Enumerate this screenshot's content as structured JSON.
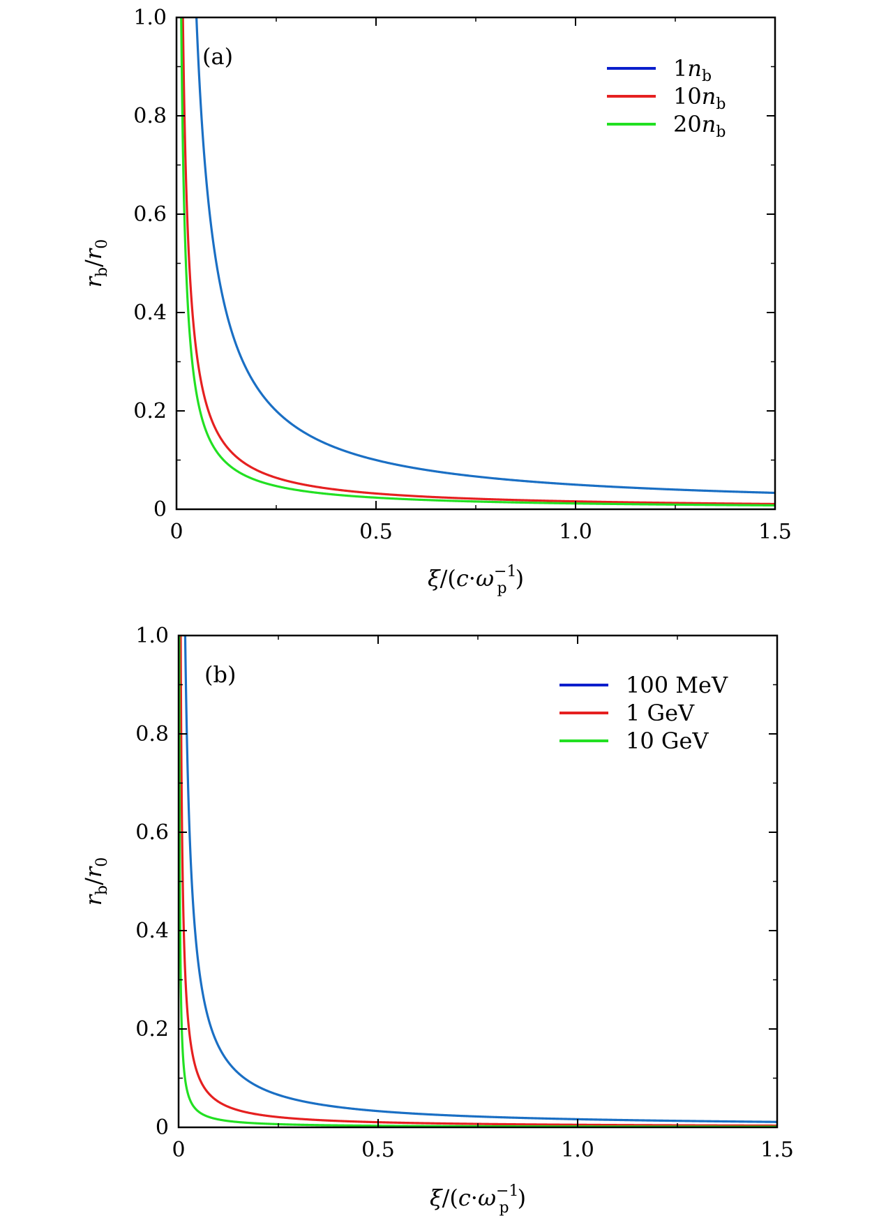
{
  "chart_data": [
    {
      "type": "line",
      "panel_label": "(a)",
      "xlabel": "ξ/(c·ω_p^−1)",
      "ylabel": "r_b/r_0",
      "xlim": [
        0,
        1.5
      ],
      "ylim": [
        0,
        1.0
      ],
      "xticks": [
        "0",
        "0.5",
        "1.0",
        "1.5"
      ],
      "yticks": [
        "0",
        "0.2",
        "0.4",
        "0.6",
        "0.8",
        "1.0"
      ],
      "grid": false,
      "legend_position": "top-right",
      "series": [
        {
          "name": "1n_b",
          "legend_main": "1",
          "legend_italic": "n",
          "legend_sub": "b",
          "color": "#1a6fc4",
          "legend_color": "#0a1ecc",
          "k": 0.05
        },
        {
          "name": "10n_b",
          "legend_main": "10",
          "legend_italic": "n",
          "legend_sub": "b",
          "color": "#e52020",
          "legend_color": "#e52020",
          "k": 0.016
        },
        {
          "name": "20n_b",
          "legend_main": "20",
          "legend_italic": "n",
          "legend_sub": "b",
          "color": "#22e022",
          "legend_color": "#22e022",
          "k": 0.0118
        }
      ],
      "sample_points": {
        "x": [
          0.03,
          0.05,
          0.1,
          0.2,
          0.3,
          0.5,
          1.0,
          1.5
        ],
        "1n_b": [
          1.0,
          1.0,
          0.5,
          0.25,
          0.167,
          0.1,
          0.05,
          0.033
        ],
        "10n_b": [
          0.53,
          0.32,
          0.16,
          0.08,
          0.053,
          0.032,
          0.016,
          0.011
        ],
        "20n_b": [
          0.39,
          0.24,
          0.12,
          0.059,
          0.039,
          0.024,
          0.012,
          0.008
        ]
      }
    },
    {
      "type": "line",
      "panel_label": "(b)",
      "xlabel": "ξ/(c·ω_p^−1)",
      "ylabel": "r_b/r_0",
      "xlim": [
        0,
        1.5
      ],
      "ylim": [
        0,
        1.0
      ],
      "xticks": [
        "0",
        "0.5",
        "1.0",
        "1.5"
      ],
      "yticks": [
        "0",
        "0.2",
        "0.4",
        "0.6",
        "0.8",
        "1.0"
      ],
      "grid": false,
      "legend_position": "top-right",
      "series": [
        {
          "name": "100 MeV",
          "legend_main": "100 MeV",
          "color": "#1a6fc4",
          "legend_color": "#0a1ecc",
          "k": 0.0165
        },
        {
          "name": "1 GeV",
          "legend_main": "1 GeV",
          "color": "#e52020",
          "legend_color": "#e52020",
          "k": 0.0052
        },
        {
          "name": "10 GeV",
          "legend_main": "10 GeV",
          "color": "#22e022",
          "legend_color": "#22e022",
          "k": 0.0016
        }
      ],
      "sample_points": {
        "x": [
          0.02,
          0.05,
          0.1,
          0.2,
          0.5,
          1.0,
          1.5
        ],
        "100 MeV": [
          0.83,
          0.33,
          0.165,
          0.083,
          0.033,
          0.017,
          0.011
        ],
        "1 GeV": [
          0.26,
          0.104,
          0.052,
          0.026,
          0.01,
          0.005,
          0.003
        ],
        "10 GeV": [
          0.08,
          0.032,
          0.016,
          0.008,
          0.003,
          0.002,
          0.001
        ]
      }
    }
  ]
}
